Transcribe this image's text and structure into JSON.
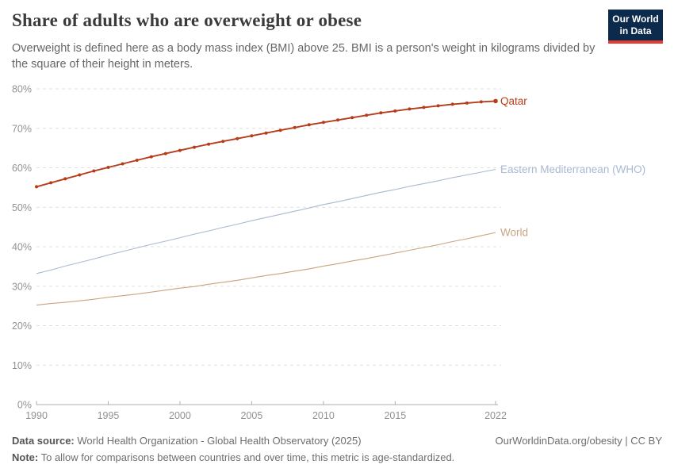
{
  "header": {
    "title": "Share of adults who are overweight or obese",
    "subtitle": "Overweight is defined here as a body mass index (BMI) above 25. BMI is a person's weight in kilograms divided by the square of their height in meters.",
    "logo": {
      "line1": "Our World",
      "line2": "in Data",
      "bg_color": "#0c2a4c",
      "accent_color": "#e23d33"
    }
  },
  "chart_data": {
    "type": "line",
    "title": "Share of adults who are overweight or obese",
    "xlabel": "",
    "ylabel": "",
    "grid": "horizontal-dashed",
    "legend_position": "right-end-labels",
    "ylim": [
      0,
      80
    ],
    "yticks": [
      0,
      10,
      20,
      30,
      40,
      50,
      60,
      70,
      80
    ],
    "ytick_labels": [
      "0%",
      "10%",
      "20%",
      "30%",
      "40%",
      "50%",
      "60%",
      "70%",
      "80%"
    ],
    "xticks": [
      1990,
      1995,
      2000,
      2005,
      2010,
      2015,
      2022
    ],
    "x": [
      1990,
      1991,
      1992,
      1993,
      1994,
      1995,
      1996,
      1997,
      1998,
      1999,
      2000,
      2001,
      2002,
      2003,
      2004,
      2005,
      2006,
      2007,
      2008,
      2009,
      2010,
      2011,
      2012,
      2013,
      2014,
      2015,
      2016,
      2017,
      2018,
      2019,
      2020,
      2021,
      2022
    ],
    "series": [
      {
        "name": "Qatar",
        "color": "#b53d1a",
        "marker": true,
        "stroke_width": 1.9,
        "values": [
          55.2,
          56.2,
          57.2,
          58.2,
          59.2,
          60.1,
          61.0,
          61.9,
          62.8,
          63.6,
          64.4,
          65.2,
          66.0,
          66.7,
          67.4,
          68.1,
          68.8,
          69.5,
          70.2,
          70.9,
          71.5,
          72.1,
          72.7,
          73.3,
          73.9,
          74.4,
          74.9,
          75.3,
          75.7,
          76.1,
          76.4,
          76.7,
          76.9
        ]
      },
      {
        "name": "Eastern Mediterranean (WHO)",
        "color": "#a9b9d3",
        "marker": false,
        "stroke_width": 1.1,
        "values": [
          33.2,
          34.1,
          35.1,
          36.0,
          36.9,
          37.9,
          38.8,
          39.7,
          40.6,
          41.4,
          42.3,
          43.2,
          44.0,
          44.9,
          45.7,
          46.6,
          47.4,
          48.2,
          49.0,
          49.8,
          50.7,
          51.4,
          52.2,
          53.0,
          53.8,
          54.5,
          55.3,
          56.0,
          56.7,
          57.5,
          58.2,
          58.9,
          59.6
        ]
      },
      {
        "name": "World",
        "color": "#c9a47e",
        "marker": false,
        "stroke_width": 1.1,
        "values": [
          25.2,
          25.6,
          25.9,
          26.3,
          26.7,
          27.2,
          27.6,
          28.0,
          28.5,
          29.0,
          29.5,
          29.9,
          30.5,
          31.0,
          31.5,
          32.1,
          32.7,
          33.2,
          33.8,
          34.4,
          35.1,
          35.7,
          36.4,
          37.0,
          37.7,
          38.4,
          39.1,
          39.8,
          40.5,
          41.3,
          42.0,
          42.8,
          43.6
        ]
      }
    ],
    "style": {
      "gridline_color": "#e1e1e1",
      "axis_color": "#aeaeae",
      "tick_label_color": "#909296"
    }
  },
  "footer": {
    "datasource_label": "Data source:",
    "datasource_text": "World Health Organization - Global Health Observatory (2025)",
    "note_label": "Note:",
    "note_text": "To allow for comparisons between countries and over time, this metric is age-standardized.",
    "link": "OurWorldinData.org/obesity | CC BY"
  }
}
